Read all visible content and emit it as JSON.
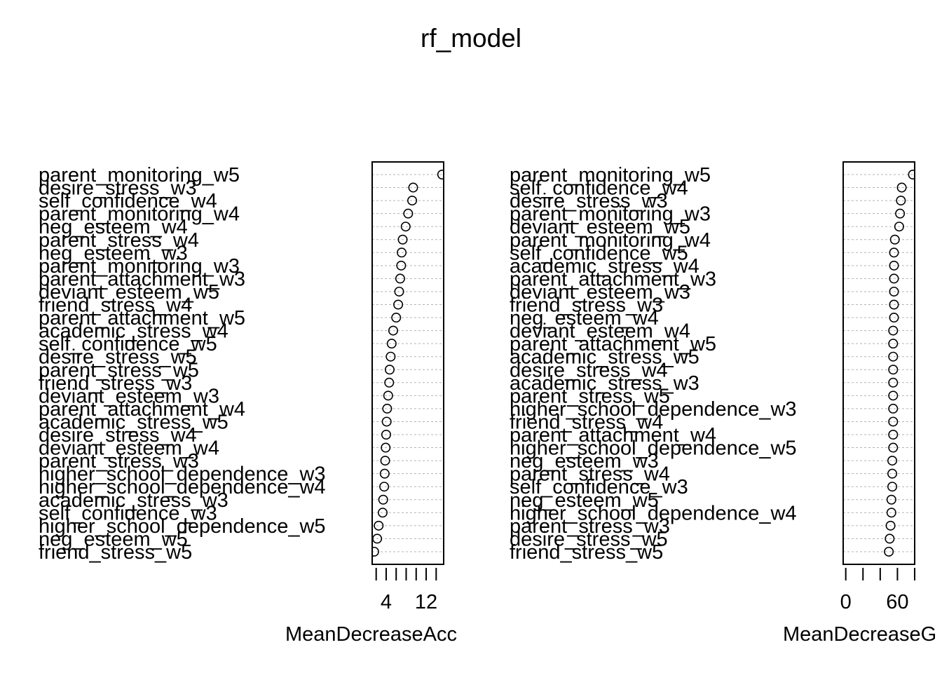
{
  "title": "rf_model",
  "chart_data": [
    {
      "type": "scatter",
      "title": "rf_model",
      "xlabel": "MeanDecreaseAcc",
      "xticks": [
        4,
        12
      ],
      "xlim": [
        1.2,
        15.5
      ],
      "categories": [
        "parent_monitoring_w5",
        "desire_stress_w3",
        "self_confidence_w4",
        "parent_monitoring_w4",
        "neg_esteem_w4",
        "parent_stress_w4",
        "neg_esteem_w3",
        "parent_monitoring_w3",
        "parent_attachment_w3",
        "deviant_esteem_w5",
        "friend_stress_w4",
        "parent_attachment_w5",
        "academic_stress_w4",
        "self_confidence_w5",
        "desire_stress_w5",
        "parent_stress_w5",
        "friend_stress_w3",
        "deviant_esteem_w3",
        "parent_attachment_w4",
        "academic_stress_w5",
        "desire_stress_w4",
        "deviant_esteem_w4",
        "parent_stress_w3",
        "higher_school_dependence_w3",
        "higher_school_dependence_w4",
        "academic_stress_w3",
        "self_confidence_w3",
        "higher_school_dependence_w5",
        "neg_esteem_w5",
        "friend_stress_w5"
      ],
      "values": [
        15.2,
        9.4,
        9.2,
        8.4,
        7.9,
        7.3,
        7.1,
        7.0,
        6.8,
        6.6,
        6.4,
        6.0,
        5.4,
        5.1,
        4.9,
        4.7,
        4.6,
        4.4,
        4.2,
        4.1,
        4.0,
        3.9,
        3.8,
        3.7,
        3.6,
        3.4,
        3.3,
        2.5,
        2.2,
        1.6
      ]
    },
    {
      "type": "scatter",
      "xlabel": "MeanDecreaseG",
      "xticks": [
        0,
        60
      ],
      "xlim": [
        -3,
        80
      ],
      "categories": [
        "parent_monitoring_w5",
        "self_confidence_w4",
        "desire_stress_w3",
        "parent_monitoring_w3",
        "deviant_esteem_w5",
        "parent_monitoring_w4",
        "self_confidence_w5",
        "academic_stress_w4",
        "parent_attachment_w3",
        "deviant_esteem_w3",
        "friend_stress_w3",
        "neg_esteem_w4",
        "deviant_esteem_w4",
        "parent_attachment_w5",
        "academic_stress_w5",
        "desire_stress_w4",
        "academic_stress_w3",
        "parent_stress_w5",
        "higher_school_dependence_w3",
        "friend_stress_w4",
        "parent_attachment_w4",
        "higher_school_dependence_w5",
        "neg_esteem_w3",
        "parent_stress_w4",
        "self_confidence_w3",
        "neg_esteem_w5",
        "higher_school_dependence_w4",
        "parent_stress_w3",
        "desire_stress_w5",
        "friend_stress_w5"
      ],
      "values": [
        78,
        65,
        64,
        63,
        62,
        57,
        56,
        56,
        56,
        56,
        56,
        56,
        55,
        55,
        55,
        55,
        55,
        55,
        55,
        55,
        55,
        55,
        54,
        54,
        54,
        53,
        53,
        52,
        51,
        50
      ]
    }
  ]
}
